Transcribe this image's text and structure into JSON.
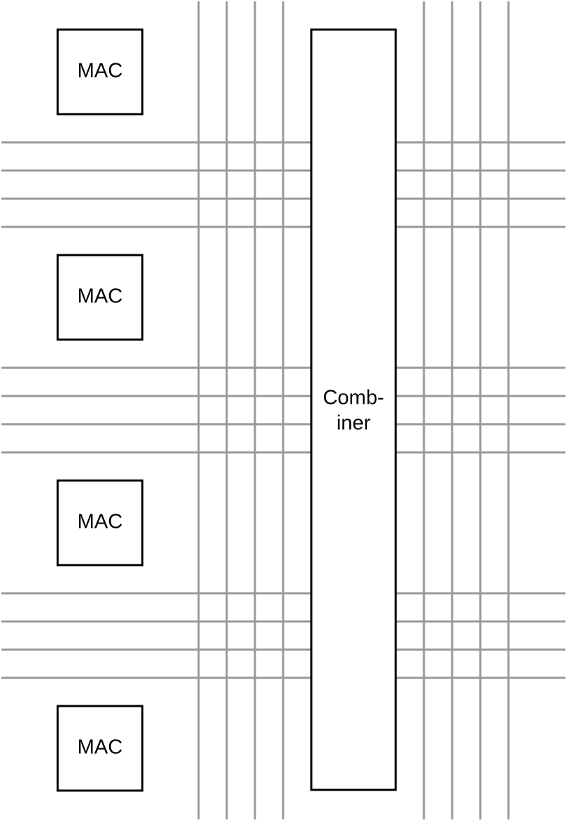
{
  "colors": {
    "wire": "#999999",
    "block_stroke": "#000000",
    "block_fill": "#ffffff",
    "background": "#ffffff"
  },
  "mac_blocks": [
    {
      "label": "MAC"
    },
    {
      "label": "MAC"
    },
    {
      "label": "MAC"
    },
    {
      "label": "MAC"
    }
  ],
  "combiner": {
    "label_line1": "Comb-",
    "label_line2": "iner"
  }
}
